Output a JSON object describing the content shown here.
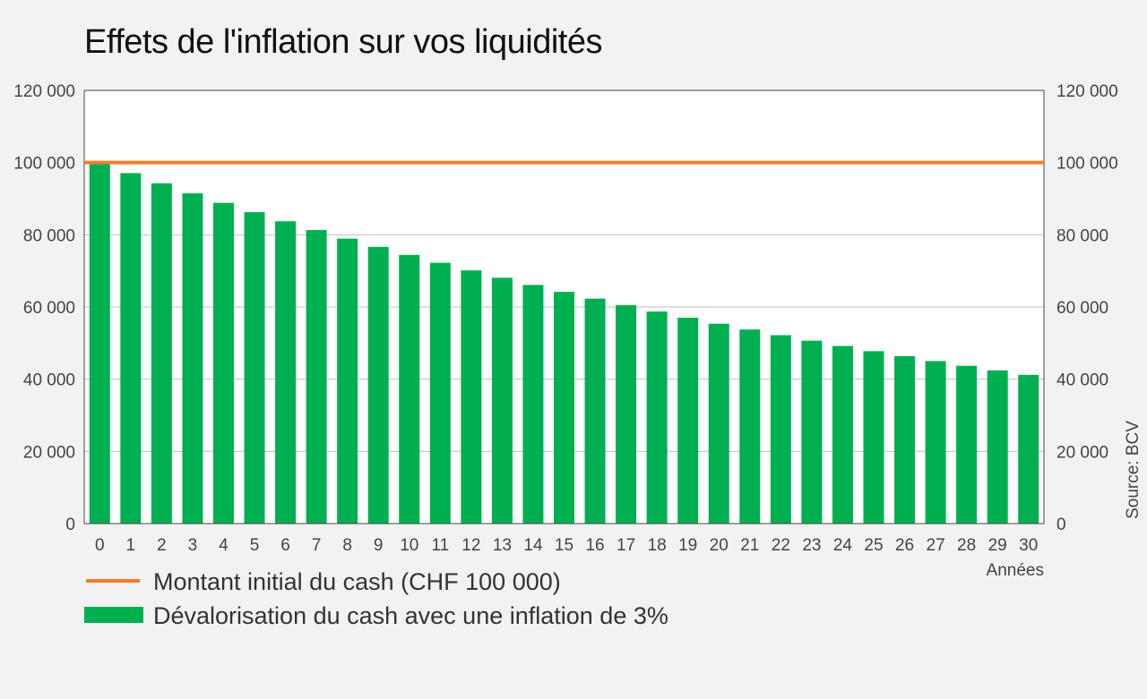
{
  "chart_data": {
    "type": "bar",
    "title": "Effets de l'inflation sur vos liquidités",
    "xlabel": "Années",
    "ylabel": "",
    "ylim": [
      0,
      120000
    ],
    "yticks": [
      "0",
      "20 000",
      "40 000",
      "60 000",
      "80 000",
      "100 000",
      "120 000"
    ],
    "grid": true,
    "categories": [
      "0",
      "1",
      "2",
      "3",
      "4",
      "5",
      "6",
      "7",
      "8",
      "9",
      "10",
      "11",
      "12",
      "13",
      "14",
      "15",
      "16",
      "17",
      "18",
      "19",
      "20",
      "21",
      "22",
      "23",
      "24",
      "25",
      "26",
      "27",
      "28",
      "29",
      "30"
    ],
    "series": [
      {
        "name": "Dévalorisation du cash avec une inflation de 3%",
        "type": "bar",
        "color": "#00b050",
        "values": [
          100000,
          97087,
          94260,
          91514,
          88849,
          86261,
          83748,
          81309,
          78941,
          76642,
          74409,
          72242,
          70138,
          68095,
          66112,
          64186,
          62317,
          60502,
          58739,
          57029,
          55368,
          53755,
          52189,
          50669,
          49193,
          47761,
          46369,
          45019,
          43708,
          42435,
          41199
        ]
      },
      {
        "name": "Montant initial du cash (CHF 100 000)",
        "type": "line",
        "color": "#f07d2a",
        "value": 100000
      }
    ],
    "legend_position": "bottom-left",
    "source": "Source: BCV"
  }
}
